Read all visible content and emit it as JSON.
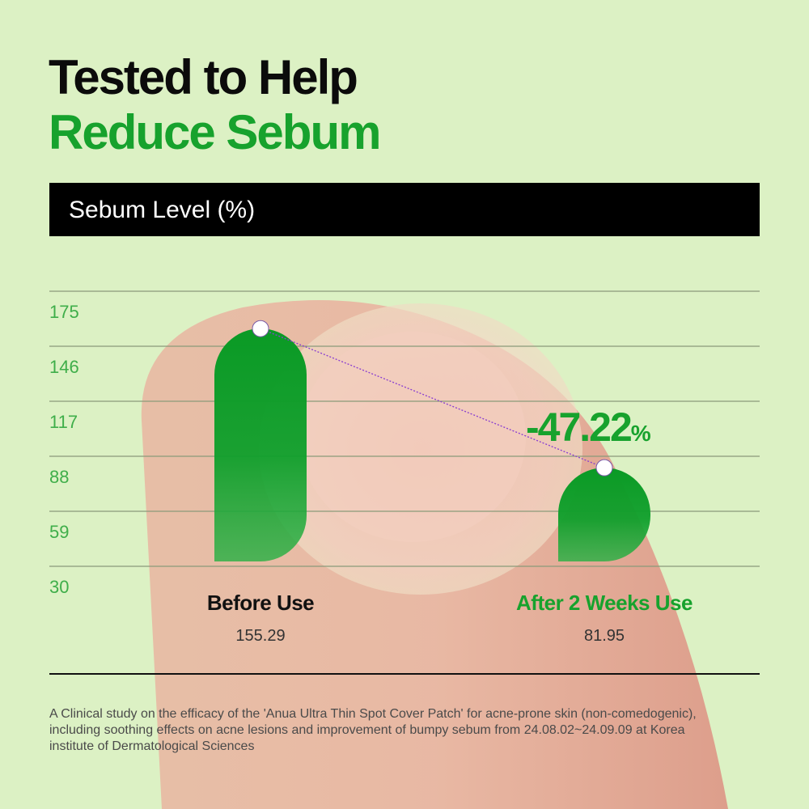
{
  "header": {
    "title_line1": "Tested to Help",
    "title_line2": "Reduce Sebum"
  },
  "band_label": "Sebum Level (%)",
  "colors": {
    "accent": "#17a22d",
    "bar": "#0e9e2a",
    "background": "#dcf1c4"
  },
  "chart_data": {
    "type": "bar",
    "title": "Sebum Level (%)",
    "categories": [
      "Before Use",
      "After 2 Weeks Use"
    ],
    "values": [
      155.29,
      81.95
    ],
    "value_labels": [
      "155.29",
      "81.95"
    ],
    "y_ticks": [
      "175",
      "146",
      "117",
      "88",
      "59",
      "30"
    ],
    "ylim": [
      30,
      175
    ],
    "grid": true,
    "annotation": {
      "value": "-47.22",
      "unit": "%"
    }
  },
  "footnote": "A Clinical study on the efficacy of the 'Anua Ultra Thin Spot Cover Patch' for acne-prone skin (non-comedogenic), including soothing effects on acne lesions and improvement of bumpy sebum from 24.08.02~24.09.09 at Korea institute of Dermatological Sciences"
}
